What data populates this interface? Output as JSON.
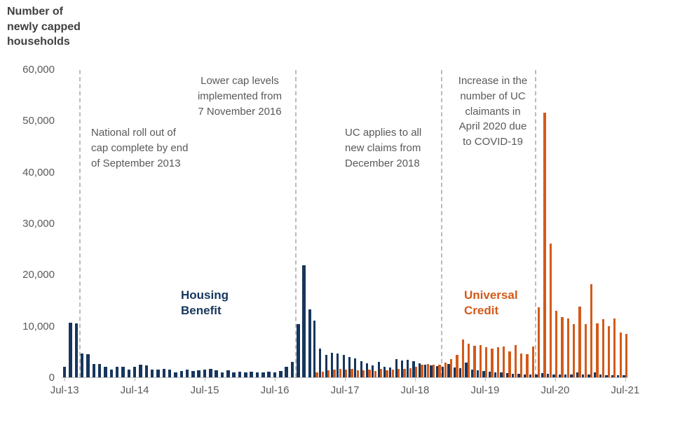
{
  "title": "Number of\nnewly capped\nhouseholds",
  "series_labels": {
    "housing_benefit": "Housing\nBenefit",
    "universal_credit": "Universal\nCredit"
  },
  "chart_data": {
    "type": "bar",
    "title": "Number of newly capped households",
    "xlabel": "",
    "ylabel": "Number of newly capped households",
    "ylim": [
      0,
      60000
    ],
    "grid": false,
    "legend_position": "inline-labels",
    "x_start": "Jul-13",
    "x_end": "Jul-21",
    "x_frequency": "monthly",
    "y_ticks": [
      {
        "value": 0,
        "label": "0"
      },
      {
        "value": 10000,
        "label": "10,000"
      },
      {
        "value": 20000,
        "label": "20,000"
      },
      {
        "value": 30000,
        "label": "30,000"
      },
      {
        "value": 40000,
        "label": "40,000"
      },
      {
        "value": 50000,
        "label": "50,000"
      },
      {
        "value": 60000,
        "label": "60,000"
      }
    ],
    "x_ticks": [
      {
        "index": 0,
        "label": "Jul-13"
      },
      {
        "index": 12,
        "label": "Jul-14"
      },
      {
        "index": 24,
        "label": "Jul-15"
      },
      {
        "index": 36,
        "label": "Jul-16"
      },
      {
        "index": 48,
        "label": "Jul-17"
      },
      {
        "index": 60,
        "label": "Jul-18"
      },
      {
        "index": 72,
        "label": "Jul-19"
      },
      {
        "index": 84,
        "label": "Jul-20"
      },
      {
        "index": 96,
        "label": "Jul-21"
      }
    ],
    "series": [
      {
        "name": "Housing Benefit",
        "color": "#17365D",
        "values": [
          2000,
          10600,
          10500,
          4600,
          4500,
          2600,
          2600,
          2100,
          1500,
          2000,
          2000,
          1500,
          2100,
          2500,
          2300,
          1500,
          1500,
          1600,
          1500,
          1000,
          1200,
          1500,
          1200,
          1300,
          1500,
          1600,
          1300,
          1000,
          1300,
          1000,
          1100,
          1000,
          1100,
          1000,
          1000,
          1100,
          1000,
          1200,
          2100,
          3000,
          10300,
          21800,
          13200,
          11100,
          5600,
          4400,
          4800,
          4600,
          4300,
          4000,
          3700,
          3100,
          2700,
          2300,
          3000,
          2100,
          1900,
          3500,
          3300,
          3400,
          3100,
          2700,
          2500,
          2300,
          2200,
          2100,
          2600,
          1900,
          1800,
          2900,
          1500,
          1300,
          1200,
          1100,
          1000,
          900,
          800,
          700,
          700,
          600,
          500,
          600,
          800,
          700,
          600,
          500,
          500,
          600,
          1000,
          500,
          500,
          900,
          500,
          400,
          400,
          400,
          400
        ]
      },
      {
        "name": "Universal Credit",
        "color": "#D35A1A",
        "values": [
          0,
          0,
          0,
          0,
          0,
          0,
          0,
          0,
          0,
          0,
          0,
          0,
          0,
          0,
          0,
          0,
          0,
          0,
          0,
          0,
          0,
          0,
          0,
          0,
          0,
          0,
          0,
          0,
          0,
          0,
          0,
          0,
          0,
          0,
          0,
          0,
          0,
          0,
          0,
          0,
          0,
          0,
          0,
          900,
          1100,
          1300,
          1500,
          1600,
          1500,
          1600,
          1400,
          1300,
          1500,
          1200,
          1600,
          1400,
          1500,
          1700,
          1600,
          1800,
          2000,
          2400,
          2600,
          2400,
          2500,
          2800,
          3500,
          4300,
          7300,
          6600,
          6200,
          6300,
          5800,
          5600,
          5900,
          6000,
          5000,
          6300,
          4700,
          4500,
          6000,
          13600,
          51500,
          26000,
          13000,
          11700,
          11500,
          10400,
          13800,
          10300,
          18200,
          10500,
          11300,
          10000,
          11500,
          8700,
          8400
        ]
      }
    ],
    "annotations": [
      {
        "text": "National roll out of\ncap complete by end\nof September 2013",
        "align": "left"
      },
      {
        "text": "Lower cap levels\nimplemented from\n7 November 2016",
        "align": "center"
      },
      {
        "text": "UC applies to all\nnew claims from\nDecember 2018",
        "align": "left"
      },
      {
        "text": "Increase in the\nnumber of UC\nclaimants in\nApril 2020 due\nto COVID-19",
        "align": "center"
      }
    ],
    "vlines": [
      {
        "month_index": 3.0,
        "annotation": "end of September 2013"
      },
      {
        "month_index": 40.0,
        "annotation": "7 November 2016"
      },
      {
        "month_index": 65.0,
        "annotation": "December 2018"
      },
      {
        "month_index": 81.0,
        "annotation": "April 2020"
      }
    ]
  }
}
